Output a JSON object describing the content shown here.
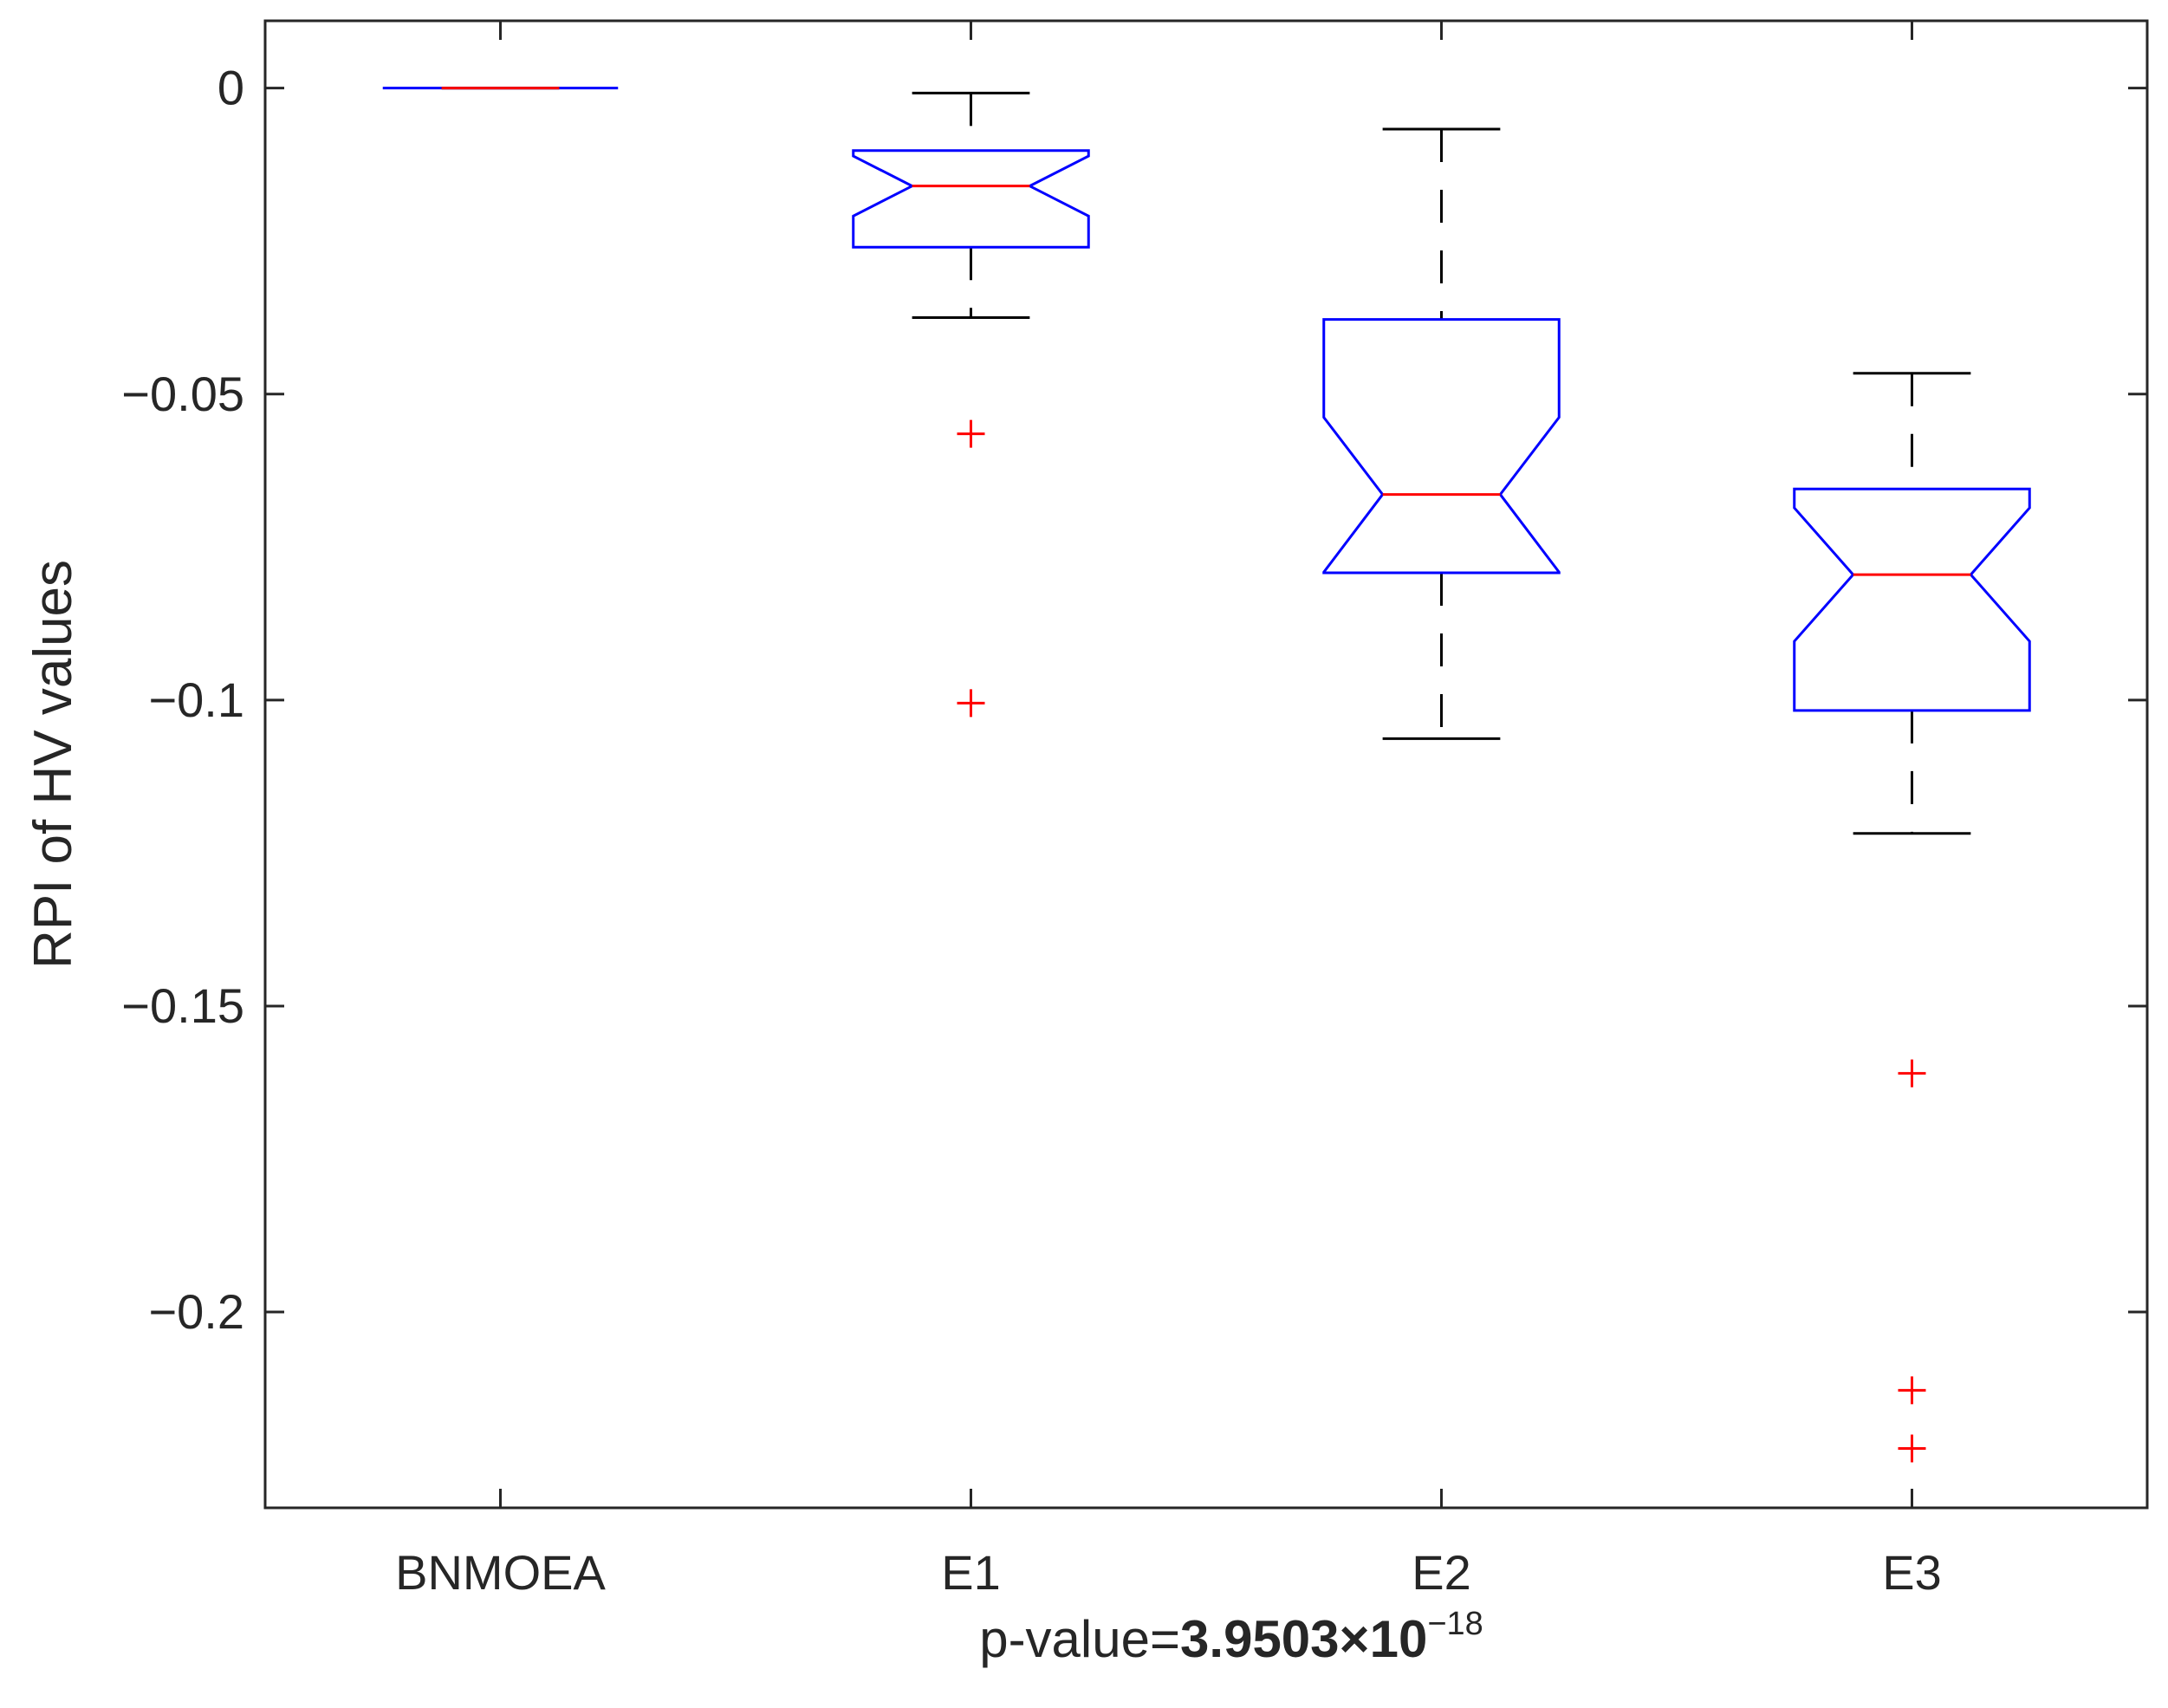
{
  "chart_data": {
    "type": "box",
    "title": "",
    "ylabel": "RPI of HV values",
    "xlabel": {
      "prefix": "p-value=",
      "value_bold": "3.9503×10",
      "exponent": "−18"
    },
    "ylim": [
      -0.232,
      0.011
    ],
    "yticks": [
      0,
      -0.05,
      -0.1,
      -0.15,
      -0.2
    ],
    "ytick_labels": [
      "0",
      "−0.05",
      "−0.1",
      "−0.15",
      "−0.2"
    ],
    "notched": true,
    "grid": false,
    "categories": [
      "BNMOEA",
      "E1",
      "E2",
      "E3"
    ],
    "boxes": [
      {
        "name": "BNMOEA",
        "whisker_low": 0,
        "q1": 0,
        "median": 0,
        "q3": 0,
        "whisker_high": 0,
        "notch_low": 0,
        "notch_high": 0,
        "outliers": []
      },
      {
        "name": "E1",
        "whisker_low": -0.0375,
        "q1": -0.026,
        "median": -0.016,
        "q3": -0.0102,
        "whisker_high": -0.0008,
        "notch_low": -0.0209,
        "notch_high": -0.0111,
        "outliers": [
          -0.0565,
          -0.1005
        ]
      },
      {
        "name": "E2",
        "whisker_low": -0.1063,
        "q1": -0.0792,
        "median": -0.0664,
        "q3": -0.0378,
        "whisker_high": -0.0067,
        "notch_low": -0.0791,
        "notch_high": -0.0538,
        "outliers": []
      },
      {
        "name": "E3",
        "whisker_low": -0.1218,
        "q1": -0.1017,
        "median": -0.0795,
        "q3": -0.0655,
        "whisker_high": -0.0466,
        "notch_low": -0.0904,
        "notch_high": -0.0686,
        "outliers": [
          -0.161,
          -0.2128,
          -0.2223
        ]
      }
    ],
    "colors": {
      "box": "#0000ff",
      "median": "#ff0000",
      "whisker": "#000000",
      "outlier": "#ff0000",
      "axes": "#262626"
    }
  }
}
